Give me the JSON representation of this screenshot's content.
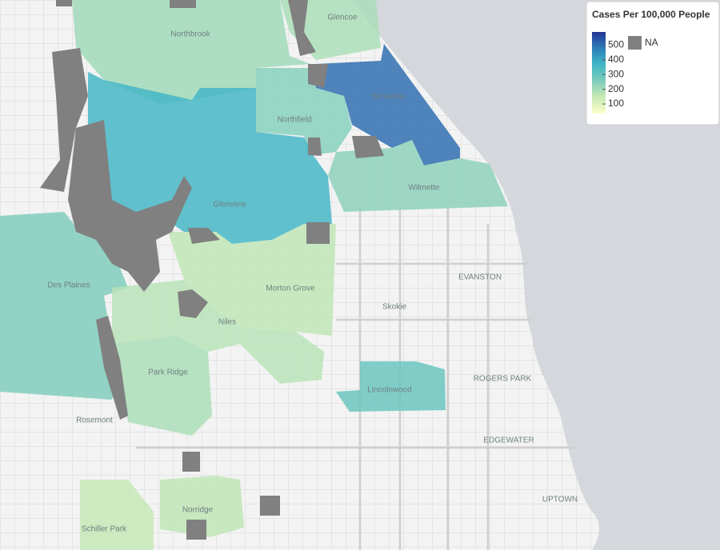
{
  "legend": {
    "title": "Cases Per 100,000 People",
    "lim": [
      35,
      590
    ],
    "ticks": [
      100,
      200,
      300,
      400,
      500
    ],
    "colors": [
      "#ffffcc",
      "#c7e9b4",
      "#7fcdbb",
      "#41b6c4",
      "#2c7fb8",
      "#253494"
    ],
    "na_label": "NA",
    "na_color": "#808080"
  },
  "regions": [
    {
      "label": "Glencoe",
      "value": 190
    },
    {
      "label": "Northbrook",
      "value": 210
    },
    {
      "label": "Winnetka",
      "value": 510
    },
    {
      "label": "Northfield",
      "value": 250
    },
    {
      "label": "Glenview",
      "value": 370
    },
    {
      "label": "Wilmette",
      "value": 240
    },
    {
      "label": "Des Plaines",
      "value": 260
    },
    {
      "label": "Morton Grove",
      "value": 160
    },
    {
      "label": "Niles",
      "value": 170
    },
    {
      "label": "Park Ridge",
      "value": 190
    },
    {
      "label": "Lincolnwood",
      "value": 300
    },
    {
      "label": "Norridge",
      "value": 160
    },
    {
      "label": "Schiller Park",
      "value": 150
    }
  ],
  "places": [
    "Skokie",
    "EVANSTON",
    "Rosemont",
    "ROGERS PARK",
    "EDGEWATER",
    "UPTOWN"
  ]
}
